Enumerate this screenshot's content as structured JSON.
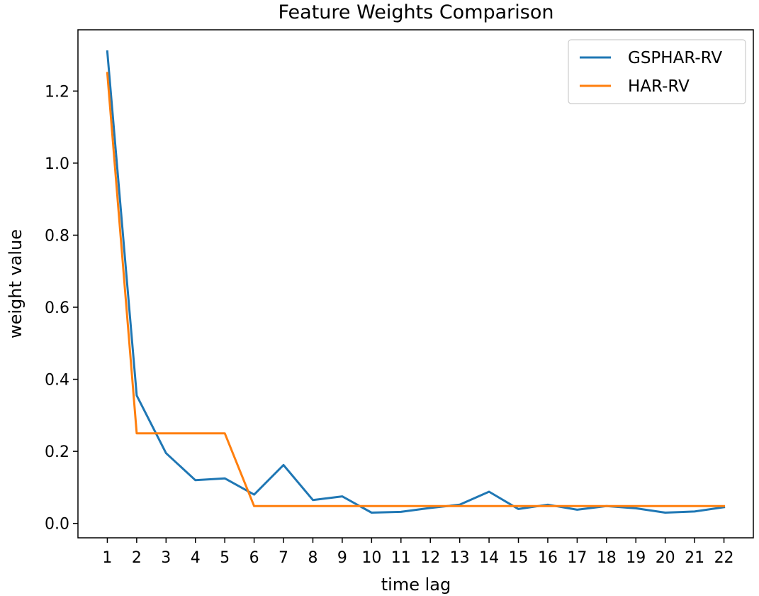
{
  "chart_data": {
    "type": "line",
    "title": "Feature Weights Comparison",
    "xlabel": "time lag",
    "ylabel": "weight value",
    "x": [
      1,
      2,
      3,
      4,
      5,
      6,
      7,
      8,
      9,
      10,
      11,
      12,
      13,
      14,
      15,
      16,
      17,
      18,
      19,
      20,
      21,
      22
    ],
    "xticks": [
      "1",
      "2",
      "3",
      "4",
      "5",
      "6",
      "7",
      "8",
      "9",
      "10",
      "11",
      "12",
      "13",
      "14",
      "15",
      "16",
      "17",
      "18",
      "19",
      "20",
      "21",
      "22"
    ],
    "yticks": [
      "0.0",
      "0.2",
      "0.4",
      "0.6",
      "0.8",
      "1.0",
      "1.2"
    ],
    "ylim": [
      -0.04,
      1.37
    ],
    "xlim": [
      0.0,
      23.0
    ],
    "grid": false,
    "legend_position": "top-right",
    "series": [
      {
        "name": "GSPHAR-RV",
        "color": "#1f77b4",
        "values": [
          1.31,
          0.355,
          0.195,
          0.12,
          0.125,
          0.08,
          0.162,
          0.065,
          0.075,
          0.03,
          0.032,
          0.043,
          0.052,
          0.088,
          0.04,
          0.052,
          0.038,
          0.048,
          0.042,
          0.03,
          0.033,
          0.045
        ]
      },
      {
        "name": "HAR-RV",
        "color": "#ff7f0e",
        "values": [
          1.25,
          0.25,
          0.25,
          0.25,
          0.25,
          0.048,
          0.048,
          0.048,
          0.048,
          0.048,
          0.048,
          0.048,
          0.048,
          0.048,
          0.048,
          0.048,
          0.048,
          0.048,
          0.048,
          0.048,
          0.048,
          0.048
        ]
      }
    ]
  }
}
